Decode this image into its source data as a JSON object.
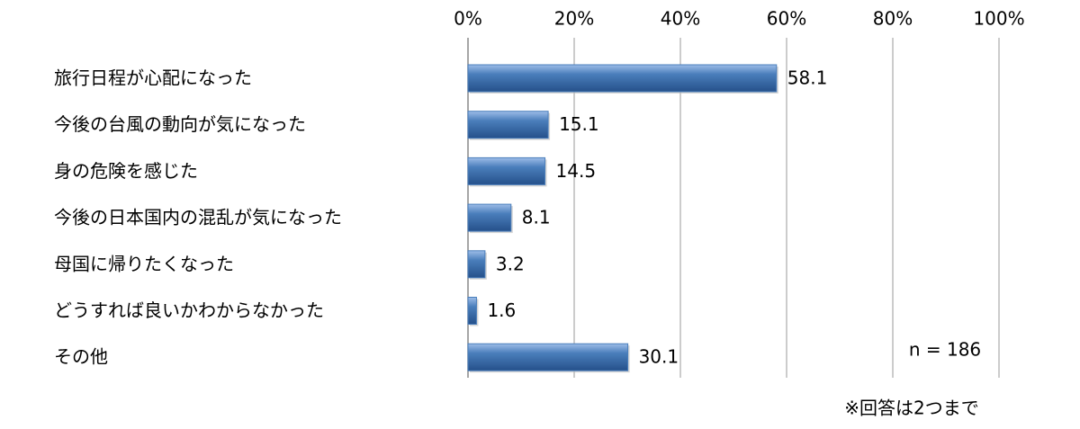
{
  "chart_data": {
    "type": "hbar",
    "categories": [
      "旅行日程が心配になった",
      "今後の台風の動向が気になった",
      "身の危険を感じた",
      "今後の日本国内の混乱が気になった",
      "母国に帰りたくなった",
      "どうすれば良いかわからなかった",
      "その他"
    ],
    "values": [
      58.1,
      15.1,
      14.5,
      8.1,
      3.2,
      1.6,
      30.1
    ],
    "color": "#4a7ebb",
    "xlim": [
      0,
      100
    ],
    "xticks": [
      {
        "value": 0,
        "label": "0%"
      },
      {
        "value": 20,
        "label": "20%"
      },
      {
        "value": 40,
        "label": "40%"
      },
      {
        "value": 60,
        "label": "60%"
      },
      {
        "value": 80,
        "label": "80%"
      },
      {
        "value": 100,
        "label": "100%"
      }
    ],
    "grid": true,
    "annotations": [
      "n = 186",
      "※回答は2つまで"
    ]
  }
}
